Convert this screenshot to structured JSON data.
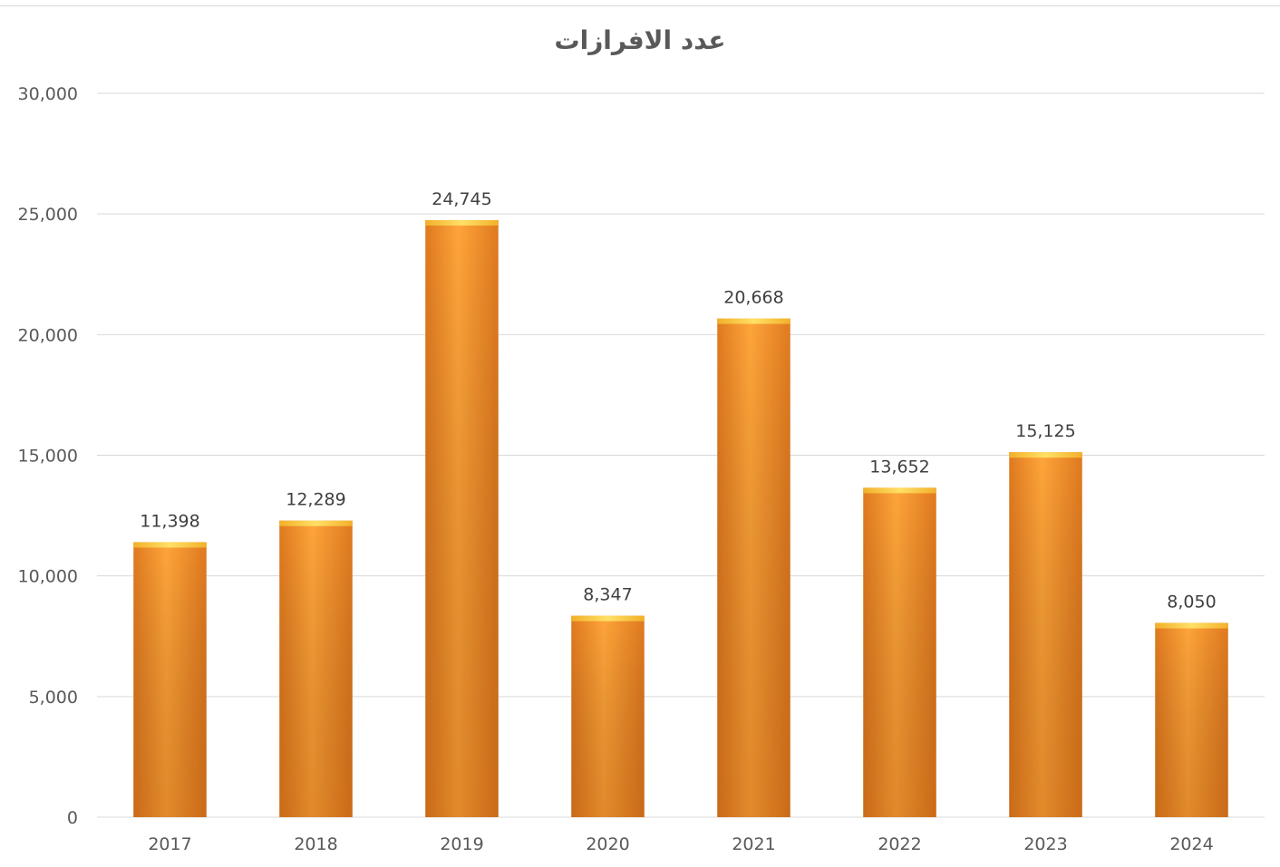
{
  "chart_data": {
    "type": "bar",
    "title": "عدد الافرازات",
    "categories": [
      "2017",
      "2018",
      "2019",
      "2020",
      "2021",
      "2022",
      "2023",
      "2024"
    ],
    "values": [
      11398,
      12289,
      24745,
      8347,
      20668,
      13652,
      15125,
      8050
    ],
    "data_labels": [
      "11,398",
      "12,289",
      "24,745",
      "8,347",
      "20,668",
      "13,652",
      "15,125",
      "8,050"
    ],
    "y_ticks": [
      0,
      5000,
      10000,
      15000,
      20000,
      25000,
      30000
    ],
    "y_tick_labels": [
      "0",
      "5,000",
      "10,000",
      "15,000",
      "20,000",
      "25,000",
      "30,000"
    ],
    "ylim": [
      0,
      30000
    ],
    "xlabel": "",
    "ylabel": "",
    "grid": true,
    "legend": "none",
    "colors": {
      "bar_light": "#ffa53a",
      "bar_dark": "#d9711a",
      "bar_top": "#ffd34d",
      "gridline": "#d9d9d9",
      "text": "#595959"
    }
  }
}
